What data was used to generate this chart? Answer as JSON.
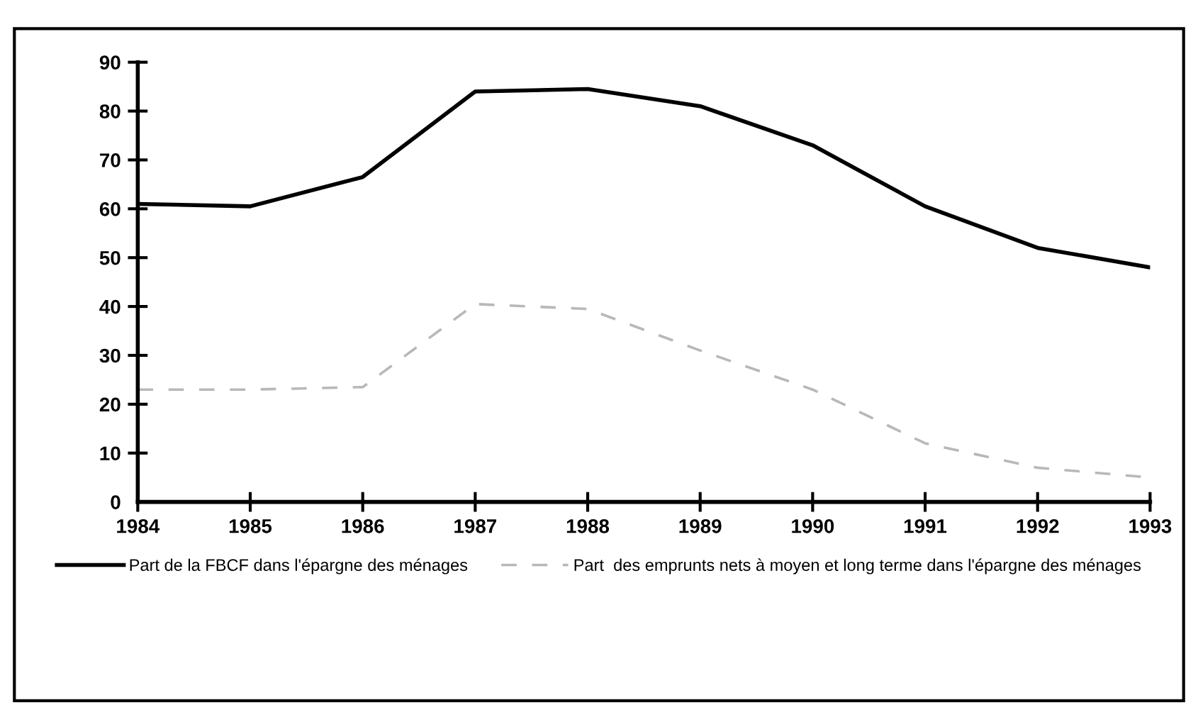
{
  "chart_data": {
    "type": "line",
    "x": [
      1984,
      1985,
      1986,
      1987,
      1988,
      1989,
      1990,
      1991,
      1992,
      1993
    ],
    "series": [
      {
        "name": "Part de la FBCF dans l'épargne des ménages",
        "color": "#000000",
        "line_style": "solid",
        "values": [
          61,
          60.5,
          66.5,
          84,
          84.5,
          81,
          73,
          60.5,
          52,
          48
        ]
      },
      {
        "name": "Part  des emprunts nets à moyen et long terme dans l'épargne des ménages",
        "color": "#b8b8b8",
        "line_style": "dashed",
        "values": [
          23,
          23,
          23.5,
          40.5,
          39.5,
          31,
          23,
          12,
          7,
          5
        ]
      }
    ],
    "xlim": [
      1984,
      1993
    ],
    "xticks": [
      1984,
      1985,
      1986,
      1987,
      1988,
      1989,
      1990,
      1991,
      1992,
      1993
    ],
    "ylim": [
      0,
      90
    ],
    "yticks": [
      0,
      10,
      20,
      30,
      40,
      50,
      60,
      70,
      80,
      90
    ],
    "grid": false,
    "legend": "bottom",
    "marker": "none"
  }
}
